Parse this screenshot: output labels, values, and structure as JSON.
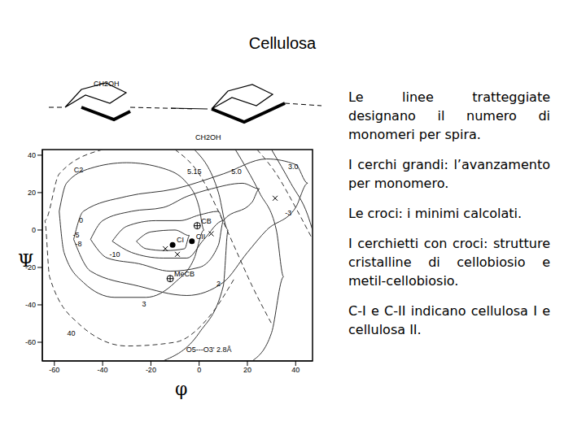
{
  "title": "Cellulosa",
  "notes": [
    "Le linee tratteggiate designano il numero di monomeri per spira.",
    "I cerchi grandi: l’avanzamento per monomero.",
    "Le croci: i minimi calcolati.",
    "I cerchietti con croci: strutture cristalline di cellobiosio e metil-cellobiosio.",
    "C-I e C-II indicano cellulosa I e cellulosa II."
  ],
  "molecule": {
    "labels": [
      "CH2OH",
      "CH2OH"
    ]
  },
  "chart_data": {
    "type": "contour",
    "xlabel": "φ",
    "ylabel": "Ψ",
    "xlim": [
      -65,
      47
    ],
    "ylim": [
      -70,
      43
    ],
    "xticks": [
      -60,
      -40,
      -20,
      0,
      20,
      40
    ],
    "yticks": [
      -60,
      -40,
      -20,
      0,
      20,
      40
    ],
    "contours": [
      {
        "line_style": "solid",
        "x": [
          -58,
          -55,
          -45,
          -30,
          -15,
          -5,
          0,
          2,
          -2,
          -10,
          -22,
          -35,
          -48,
          -56,
          -58
        ],
        "y": [
          10,
          25,
          33,
          36,
          33,
          25,
          12,
          0,
          -15,
          -28,
          -36,
          -36,
          -28,
          -12,
          10
        ]
      },
      {
        "line_style": "solid",
        "x": [
          -52,
          -48,
          -30,
          -10,
          10,
          28,
          40,
          45,
          40,
          28,
          20,
          10,
          -5,
          -25,
          -45,
          -52
        ],
        "y": [
          -5,
          10,
          18,
          22,
          30,
          38,
          35,
          25,
          12,
          0,
          -12,
          -28,
          -35,
          -30,
          -22,
          -5
        ]
      },
      {
        "line_style": "solid",
        "x": [
          -45,
          -40,
          -28,
          -15,
          -5,
          5,
          18,
          25,
          22,
          10,
          8,
          0,
          -12,
          -25,
          -38,
          -45
        ],
        "y": [
          -5,
          5,
          10,
          12,
          18,
          22,
          25,
          22,
          15,
          5,
          -8,
          -20,
          -22,
          -18,
          -15,
          -5
        ]
      },
      {
        "line_style": "solid",
        "x": [
          -36,
          -30,
          -18,
          -8,
          0,
          8,
          10,
          2,
          -5,
          -15,
          -28,
          -36
        ],
        "y": [
          -6,
          2,
          5,
          5,
          8,
          10,
          5,
          -5,
          -15,
          -15,
          -12,
          -6
        ]
      },
      {
        "line_style": "solid",
        "x": [
          -26,
          -20,
          -10,
          -4,
          -6,
          -14,
          -22,
          -26
        ],
        "y": [
          -6,
          -1,
          0,
          -3,
          -10,
          -11,
          -10,
          -6
        ]
      },
      {
        "line_style": "dashed",
        "x": [
          -40,
          -58,
          -64,
          -62,
          -50,
          -30,
          -10,
          5,
          15
        ],
        "y": [
          43,
          30,
          5,
          -25,
          -50,
          -62,
          -60,
          -45,
          -25
        ]
      },
      {
        "line_style": "solid",
        "x": [
          -2,
          8,
          12,
          10,
          0,
          -15
        ],
        "y": [
          43,
          20,
          0,
          -30,
          -55,
          -70
        ]
      },
      {
        "line_style": "solid",
        "x": [
          15,
          25,
          32,
          35,
          30,
          22
        ],
        "y": [
          43,
          20,
          0,
          -25,
          -55,
          -70
        ]
      },
      {
        "line_style": "solid",
        "x": [
          30,
          38,
          45,
          47
        ],
        "y": [
          43,
          25,
          8,
          0
        ]
      },
      {
        "line_style": "dashed",
        "x": [
          -10,
          0,
          8,
          15,
          22,
          30
        ],
        "y": [
          43,
          30,
          10,
          -10,
          -30,
          -50
        ]
      },
      {
        "line_style": "dashed",
        "x": [
          24,
          32,
          40,
          47
        ],
        "y": [
          43,
          30,
          12,
          -5
        ]
      }
    ],
    "points": [
      {
        "marker": "cross",
        "x": 31.5,
        "y": 17,
        "label": null
      },
      {
        "marker": "cross",
        "x": -14,
        "y": -10,
        "label": null
      },
      {
        "marker": "cross",
        "x": -9,
        "y": -13,
        "label": null
      },
      {
        "marker": "cross",
        "x": 5,
        "y": -2,
        "label": null
      },
      {
        "marker": "circle_cross",
        "x": -0.8,
        "y": 2.3,
        "label": "CB"
      },
      {
        "marker": "circle_cross",
        "x": -12,
        "y": -26,
        "label": "MeCB"
      },
      {
        "marker": "filled_circle",
        "x": -11,
        "y": -8,
        "label": "CI"
      },
      {
        "marker": "filled_circle",
        "x": -3,
        "y": -6,
        "label": "CII"
      }
    ],
    "annotations": [
      {
        "text": "C2",
        "x": -50,
        "y": 32
      },
      {
        "text": "5.15",
        "x": -2,
        "y": 31
      },
      {
        "text": "5.0",
        "x": 15.5,
        "y": 31
      },
      {
        "text": "3.0",
        "x": 39,
        "y": 33.4
      },
      {
        "text": "0",
        "x": -49,
        "y": 5
      },
      {
        "text": "-5",
        "x": -51,
        "y": -3
      },
      {
        "text": "-8",
        "x": -50,
        "y": -7.5
      },
      {
        "text": "-10",
        "x": -35,
        "y": -13.5
      },
      {
        "text": "2",
        "x": 8,
        "y": -29
      },
      {
        "text": "3",
        "x": -22.8,
        "y": -40
      },
      {
        "text": "-3",
        "x": 37,
        "y": 9
      },
      {
        "text": "40",
        "x": -53,
        "y": -55.6
      },
      {
        "text": "O5---O3' 2.8Å",
        "x": 4,
        "y": -64
      }
    ]
  }
}
